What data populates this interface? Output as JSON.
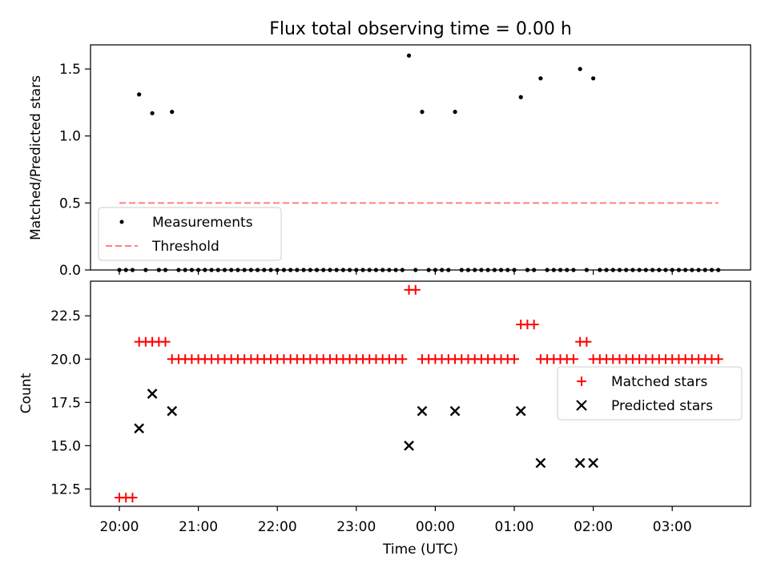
{
  "chart_data": [
    {
      "type": "scatter",
      "title": "Flux total observing time = 0.00 h",
      "xlabel": "",
      "ylabel": "Matched/Predicted stars",
      "ylim": [
        0,
        1.68
      ],
      "yticks": [
        {
          "value": 0.0,
          "label": "0.0"
        },
        {
          "value": 0.5,
          "label": "0.5"
        },
        {
          "value": 1.0,
          "label": "1.0"
        },
        {
          "value": 1.5,
          "label": "1.5"
        }
      ],
      "legend_position": "lower-left",
      "grid": false,
      "series": [
        {
          "name": "Measurements",
          "marker": "dot",
          "color": "#000000",
          "points": [
            {
              "x": "20:00",
              "y": 0
            },
            {
              "x": "20:05",
              "y": 0
            },
            {
              "x": "20:10",
              "y": 0
            },
            {
              "x": "20:15",
              "y": 1.31
            },
            {
              "x": "20:20",
              "y": 0
            },
            {
              "x": "20:25",
              "y": 1.17
            },
            {
              "x": "20:30",
              "y": 0
            },
            {
              "x": "20:35",
              "y": 0
            },
            {
              "x": "20:40",
              "y": 1.18
            },
            {
              "x": "20:45",
              "y": 0
            },
            {
              "x": "20:50",
              "y": 0
            },
            {
              "x": "20:55",
              "y": 0
            },
            {
              "x": "21:00",
              "y": 0
            },
            {
              "x": "21:05",
              "y": 0
            },
            {
              "x": "21:10",
              "y": 0
            },
            {
              "x": "21:15",
              "y": 0
            },
            {
              "x": "21:20",
              "y": 0
            },
            {
              "x": "21:25",
              "y": 0
            },
            {
              "x": "21:30",
              "y": 0
            },
            {
              "x": "21:35",
              "y": 0
            },
            {
              "x": "21:40",
              "y": 0
            },
            {
              "x": "21:45",
              "y": 0
            },
            {
              "x": "21:50",
              "y": 0
            },
            {
              "x": "21:55",
              "y": 0
            },
            {
              "x": "22:00",
              "y": 0
            },
            {
              "x": "22:05",
              "y": 0
            },
            {
              "x": "22:10",
              "y": 0
            },
            {
              "x": "22:15",
              "y": 0
            },
            {
              "x": "22:20",
              "y": 0
            },
            {
              "x": "22:25",
              "y": 0
            },
            {
              "x": "22:30",
              "y": 0
            },
            {
              "x": "22:35",
              "y": 0
            },
            {
              "x": "22:40",
              "y": 0
            },
            {
              "x": "22:45",
              "y": 0
            },
            {
              "x": "22:50",
              "y": 0
            },
            {
              "x": "22:55",
              "y": 0
            },
            {
              "x": "23:00",
              "y": 0
            },
            {
              "x": "23:05",
              "y": 0
            },
            {
              "x": "23:10",
              "y": 0
            },
            {
              "x": "23:15",
              "y": 0
            },
            {
              "x": "23:20",
              "y": 0
            },
            {
              "x": "23:25",
              "y": 0
            },
            {
              "x": "23:30",
              "y": 0
            },
            {
              "x": "23:35",
              "y": 0
            },
            {
              "x": "23:40",
              "y": 1.6
            },
            {
              "x": "23:45",
              "y": 0
            },
            {
              "x": "23:50",
              "y": 1.18
            },
            {
              "x": "23:55",
              "y": 0
            },
            {
              "x": "00:00",
              "y": 0
            },
            {
              "x": "00:05",
              "y": 0
            },
            {
              "x": "00:10",
              "y": 0
            },
            {
              "x": "00:15",
              "y": 1.18
            },
            {
              "x": "00:20",
              "y": 0
            },
            {
              "x": "00:25",
              "y": 0
            },
            {
              "x": "00:30",
              "y": 0
            },
            {
              "x": "00:35",
              "y": 0
            },
            {
              "x": "00:40",
              "y": 0
            },
            {
              "x": "00:45",
              "y": 0
            },
            {
              "x": "00:50",
              "y": 0
            },
            {
              "x": "00:55",
              "y": 0
            },
            {
              "x": "01:00",
              "y": 0
            },
            {
              "x": "01:05",
              "y": 1.29
            },
            {
              "x": "01:10",
              "y": 0
            },
            {
              "x": "01:15",
              "y": 0
            },
            {
              "x": "01:20",
              "y": 1.43
            },
            {
              "x": "01:25",
              "y": 0
            },
            {
              "x": "01:30",
              "y": 0
            },
            {
              "x": "01:35",
              "y": 0
            },
            {
              "x": "01:40",
              "y": 0
            },
            {
              "x": "01:45",
              "y": 0
            },
            {
              "x": "01:50",
              "y": 1.5
            },
            {
              "x": "01:55",
              "y": 0
            },
            {
              "x": "02:00",
              "y": 1.43
            },
            {
              "x": "02:05",
              "y": 0
            },
            {
              "x": "02:10",
              "y": 0
            },
            {
              "x": "02:15",
              "y": 0
            },
            {
              "x": "02:20",
              "y": 0
            },
            {
              "x": "02:25",
              "y": 0
            },
            {
              "x": "02:30",
              "y": 0
            },
            {
              "x": "02:35",
              "y": 0
            },
            {
              "x": "02:40",
              "y": 0
            },
            {
              "x": "02:45",
              "y": 0
            },
            {
              "x": "02:50",
              "y": 0
            },
            {
              "x": "02:55",
              "y": 0
            },
            {
              "x": "03:00",
              "y": 0
            },
            {
              "x": "03:05",
              "y": 0
            },
            {
              "x": "03:10",
              "y": 0
            },
            {
              "x": "03:15",
              "y": 0
            },
            {
              "x": "03:20",
              "y": 0
            },
            {
              "x": "03:25",
              "y": 0
            },
            {
              "x": "03:30",
              "y": 0
            },
            {
              "x": "03:35",
              "y": 0
            }
          ]
        },
        {
          "name": "Threshold",
          "marker": "dashed-line",
          "color": "#ff8080",
          "points": [
            {
              "x": "20:00",
              "y": 0.5
            },
            {
              "x": "03:35",
              "y": 0.5
            }
          ]
        }
      ]
    },
    {
      "type": "scatter",
      "title": "",
      "xlabel": "Time (UTC)",
      "ylabel": "Count",
      "ylim": [
        11.5,
        24.5
      ],
      "yticks": [
        {
          "value": 12.5,
          "label": "12.5"
        },
        {
          "value": 15.0,
          "label": "15.0"
        },
        {
          "value": 17.5,
          "label": "17.5"
        },
        {
          "value": 20.0,
          "label": "20.0"
        },
        {
          "value": 22.5,
          "label": "22.5"
        }
      ],
      "xticks": [
        "20:00",
        "21:00",
        "22:00",
        "23:00",
        "00:00",
        "01:00",
        "02:00",
        "03:00"
      ],
      "legend_position": "center-right",
      "grid": false,
      "series": [
        {
          "name": "Matched stars",
          "marker": "plus",
          "color": "#ff0000",
          "points": [
            {
              "x": "20:00",
              "y": 12
            },
            {
              "x": "20:05",
              "y": 12
            },
            {
              "x": "20:10",
              "y": 12
            },
            {
              "x": "20:15",
              "y": 21
            },
            {
              "x": "20:20",
              "y": 21
            },
            {
              "x": "20:25",
              "y": 21
            },
            {
              "x": "20:30",
              "y": 21
            },
            {
              "x": "20:35",
              "y": 21
            },
            {
              "x": "20:40",
              "y": 20
            },
            {
              "x": "20:45",
              "y": 20
            },
            {
              "x": "20:50",
              "y": 20
            },
            {
              "x": "20:55",
              "y": 20
            },
            {
              "x": "21:00",
              "y": 20
            },
            {
              "x": "21:05",
              "y": 20
            },
            {
              "x": "21:10",
              "y": 20
            },
            {
              "x": "21:15",
              "y": 20
            },
            {
              "x": "21:20",
              "y": 20
            },
            {
              "x": "21:25",
              "y": 20
            },
            {
              "x": "21:30",
              "y": 20
            },
            {
              "x": "21:35",
              "y": 20
            },
            {
              "x": "21:40",
              "y": 20
            },
            {
              "x": "21:45",
              "y": 20
            },
            {
              "x": "21:50",
              "y": 20
            },
            {
              "x": "21:55",
              "y": 20
            },
            {
              "x": "22:00",
              "y": 20
            },
            {
              "x": "22:05",
              "y": 20
            },
            {
              "x": "22:10",
              "y": 20
            },
            {
              "x": "22:15",
              "y": 20
            },
            {
              "x": "22:20",
              "y": 20
            },
            {
              "x": "22:25",
              "y": 20
            },
            {
              "x": "22:30",
              "y": 20
            },
            {
              "x": "22:35",
              "y": 20
            },
            {
              "x": "22:40",
              "y": 20
            },
            {
              "x": "22:45",
              "y": 20
            },
            {
              "x": "22:50",
              "y": 20
            },
            {
              "x": "22:55",
              "y": 20
            },
            {
              "x": "23:00",
              "y": 20
            },
            {
              "x": "23:05",
              "y": 20
            },
            {
              "x": "23:10",
              "y": 20
            },
            {
              "x": "23:15",
              "y": 20
            },
            {
              "x": "23:20",
              "y": 20
            },
            {
              "x": "23:25",
              "y": 20
            },
            {
              "x": "23:30",
              "y": 20
            },
            {
              "x": "23:35",
              "y": 20
            },
            {
              "x": "23:40",
              "y": 24
            },
            {
              "x": "23:45",
              "y": 24
            },
            {
              "x": "23:50",
              "y": 20
            },
            {
              "x": "23:55",
              "y": 20
            },
            {
              "x": "00:00",
              "y": 20
            },
            {
              "x": "00:05",
              "y": 20
            },
            {
              "x": "00:10",
              "y": 20
            },
            {
              "x": "00:15",
              "y": 20
            },
            {
              "x": "00:20",
              "y": 20
            },
            {
              "x": "00:25",
              "y": 20
            },
            {
              "x": "00:30",
              "y": 20
            },
            {
              "x": "00:35",
              "y": 20
            },
            {
              "x": "00:40",
              "y": 20
            },
            {
              "x": "00:45",
              "y": 20
            },
            {
              "x": "00:50",
              "y": 20
            },
            {
              "x": "00:55",
              "y": 20
            },
            {
              "x": "01:00",
              "y": 20
            },
            {
              "x": "01:05",
              "y": 22
            },
            {
              "x": "01:10",
              "y": 22
            },
            {
              "x": "01:15",
              "y": 22
            },
            {
              "x": "01:20",
              "y": 20
            },
            {
              "x": "01:25",
              "y": 20
            },
            {
              "x": "01:30",
              "y": 20
            },
            {
              "x": "01:35",
              "y": 20
            },
            {
              "x": "01:40",
              "y": 20
            },
            {
              "x": "01:45",
              "y": 20
            },
            {
              "x": "01:50",
              "y": 21
            },
            {
              "x": "01:55",
              "y": 21
            },
            {
              "x": "02:00",
              "y": 20
            },
            {
              "x": "02:05",
              "y": 20
            },
            {
              "x": "02:10",
              "y": 20
            },
            {
              "x": "02:15",
              "y": 20
            },
            {
              "x": "02:20",
              "y": 20
            },
            {
              "x": "02:25",
              "y": 20
            },
            {
              "x": "02:30",
              "y": 20
            },
            {
              "x": "02:35",
              "y": 20
            },
            {
              "x": "02:40",
              "y": 20
            },
            {
              "x": "02:45",
              "y": 20
            },
            {
              "x": "02:50",
              "y": 20
            },
            {
              "x": "02:55",
              "y": 20
            },
            {
              "x": "03:00",
              "y": 20
            },
            {
              "x": "03:05",
              "y": 20
            },
            {
              "x": "03:10",
              "y": 20
            },
            {
              "x": "03:15",
              "y": 20
            },
            {
              "x": "03:20",
              "y": 20
            },
            {
              "x": "03:25",
              "y": 20
            },
            {
              "x": "03:30",
              "y": 20
            },
            {
              "x": "03:35",
              "y": 20
            }
          ]
        },
        {
          "name": "Predicted stars",
          "marker": "x",
          "color": "#000000",
          "points": [
            {
              "x": "20:15",
              "y": 16
            },
            {
              "x": "20:25",
              "y": 18
            },
            {
              "x": "20:40",
              "y": 17
            },
            {
              "x": "23:40",
              "y": 15
            },
            {
              "x": "23:50",
              "y": 17
            },
            {
              "x": "00:15",
              "y": 17
            },
            {
              "x": "01:05",
              "y": 17
            },
            {
              "x": "01:20",
              "y": 14
            },
            {
              "x": "01:50",
              "y": 14
            },
            {
              "x": "02:00",
              "y": 14
            }
          ]
        }
      ]
    }
  ]
}
